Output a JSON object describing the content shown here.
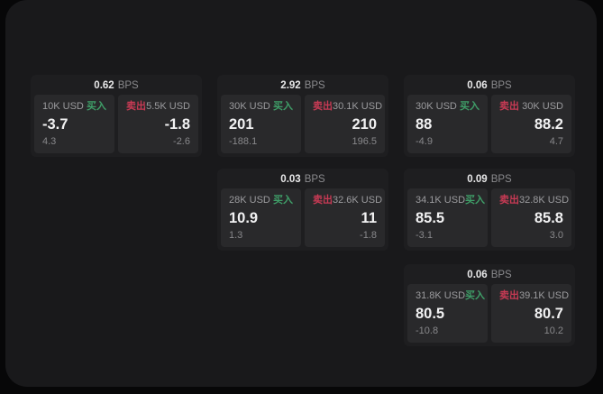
{
  "labels": {
    "buy": "买入",
    "sell": "卖出",
    "bps_unit": "BPS"
  },
  "colors": {
    "buy_accent": "#3f9e68",
    "sell_accent": "#c73a54",
    "surface": "#19191b",
    "card": "#1e1e20",
    "panel": "#29292b"
  },
  "cards": [
    {
      "bps": "0.62",
      "buy": {
        "amount": "10K USD",
        "price": "-3.7",
        "change": "4.3"
      },
      "sell": {
        "amount": "5.5K USD",
        "price": "-1.8",
        "change": "-2.6"
      }
    },
    {
      "bps": "2.92",
      "buy": {
        "amount": "30K USD",
        "price": "201",
        "change": "-188.1"
      },
      "sell": {
        "amount": "30.1K USD",
        "price": "210",
        "change": "196.5"
      }
    },
    {
      "bps": "0.06",
      "buy": {
        "amount": "30K USD",
        "price": "88",
        "change": "-4.9"
      },
      "sell": {
        "amount": "30K USD",
        "price": "88.2",
        "change": "4.7"
      }
    },
    {
      "bps": "0.03",
      "buy": {
        "amount": "28K USD",
        "price": "10.9",
        "change": "1.3"
      },
      "sell": {
        "amount": "32.6K USD",
        "price": "11",
        "change": "-1.8"
      }
    },
    {
      "bps": "0.09",
      "buy": {
        "amount": "34.1K USD",
        "price": "85.5",
        "change": "-3.1"
      },
      "sell": {
        "amount": "32.8K USD",
        "price": "85.8",
        "change": "3.0"
      }
    },
    {
      "bps": "0.06",
      "buy": {
        "amount": "31.8K USD",
        "price": "80.5",
        "change": "-10.8"
      },
      "sell": {
        "amount": "39.1K USD",
        "price": "80.7",
        "change": "10.2"
      }
    }
  ]
}
